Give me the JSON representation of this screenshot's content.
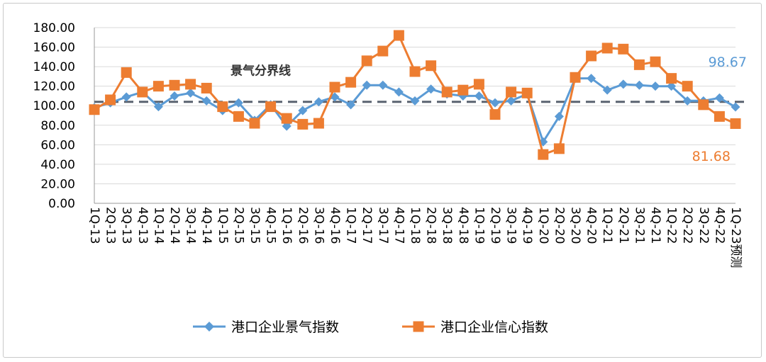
{
  "chart_data": {
    "type": "line",
    "title": "",
    "xlabel": "",
    "ylabel": "",
    "ylim": [
      0,
      180
    ],
    "yticks": [
      "0.00",
      "20.00",
      "40.00",
      "60.00",
      "80.00",
      "100.00",
      "120.00",
      "140.00",
      "160.00",
      "180.00"
    ],
    "categories": [
      "1Q-13",
      "2Q-13",
      "3Q-13",
      "4Q-13",
      "1Q-14",
      "2Q-14",
      "3Q-14",
      "4Q-14",
      "1Q-15",
      "2Q-15",
      "3Q-15",
      "4Q-15",
      "1Q-16",
      "2Q-16",
      "3Q-16",
      "4Q-16",
      "1Q-17",
      "2Q-17",
      "3Q-17",
      "4Q-17",
      "1Q-18",
      "2Q-18",
      "3Q-18",
      "4Q-18",
      "1Q-19",
      "2Q-19",
      "3Q-19",
      "4Q-19",
      "1Q-20",
      "2Q-20",
      "3Q-20",
      "4Q-20",
      "1Q-21",
      "2Q-21",
      "3Q-21",
      "4Q-21",
      "1Q-22",
      "2Q-22",
      "3Q-22",
      "4Q-22",
      "1Q-23预测"
    ],
    "series": [
      {
        "name": "港口企业景气指数",
        "color": "#5b9bd5",
        "marker": "diamond",
        "values": [
          98,
          103,
          109,
          114,
          99,
          110,
          113,
          105,
          95,
          103,
          85,
          101,
          79,
          95,
          104,
          109,
          101,
          121,
          121,
          114,
          105,
          117,
          112,
          110,
          110,
          103,
          105,
          112,
          63,
          89,
          128,
          128,
          116,
          122,
          121,
          120,
          120,
          105,
          105,
          108,
          98.67
        ]
      },
      {
        "name": "港口企业信心指数",
        "color": "#ed7d31",
        "marker": "square",
        "values": [
          96,
          106,
          134,
          114,
          120,
          121,
          122,
          118,
          99,
          89,
          82,
          99,
          87,
          81,
          82,
          119,
          124,
          146,
          156,
          172,
          135,
          141,
          114,
          116,
          122,
          91,
          114,
          113,
          50,
          56,
          129,
          151,
          159,
          158,
          142,
          145,
          128,
          120,
          101,
          89,
          81.68
        ]
      }
    ],
    "reference_line": {
      "value": 104,
      "label": "景气分界线",
      "color": "#5a6370"
    },
    "annotations": [
      {
        "series": 0,
        "text": "98.67",
        "color": "#5b9bd5"
      },
      {
        "series": 1,
        "text": "81.68",
        "color": "#ed7d31"
      }
    ],
    "legend_position": "bottom",
    "grid": true
  }
}
